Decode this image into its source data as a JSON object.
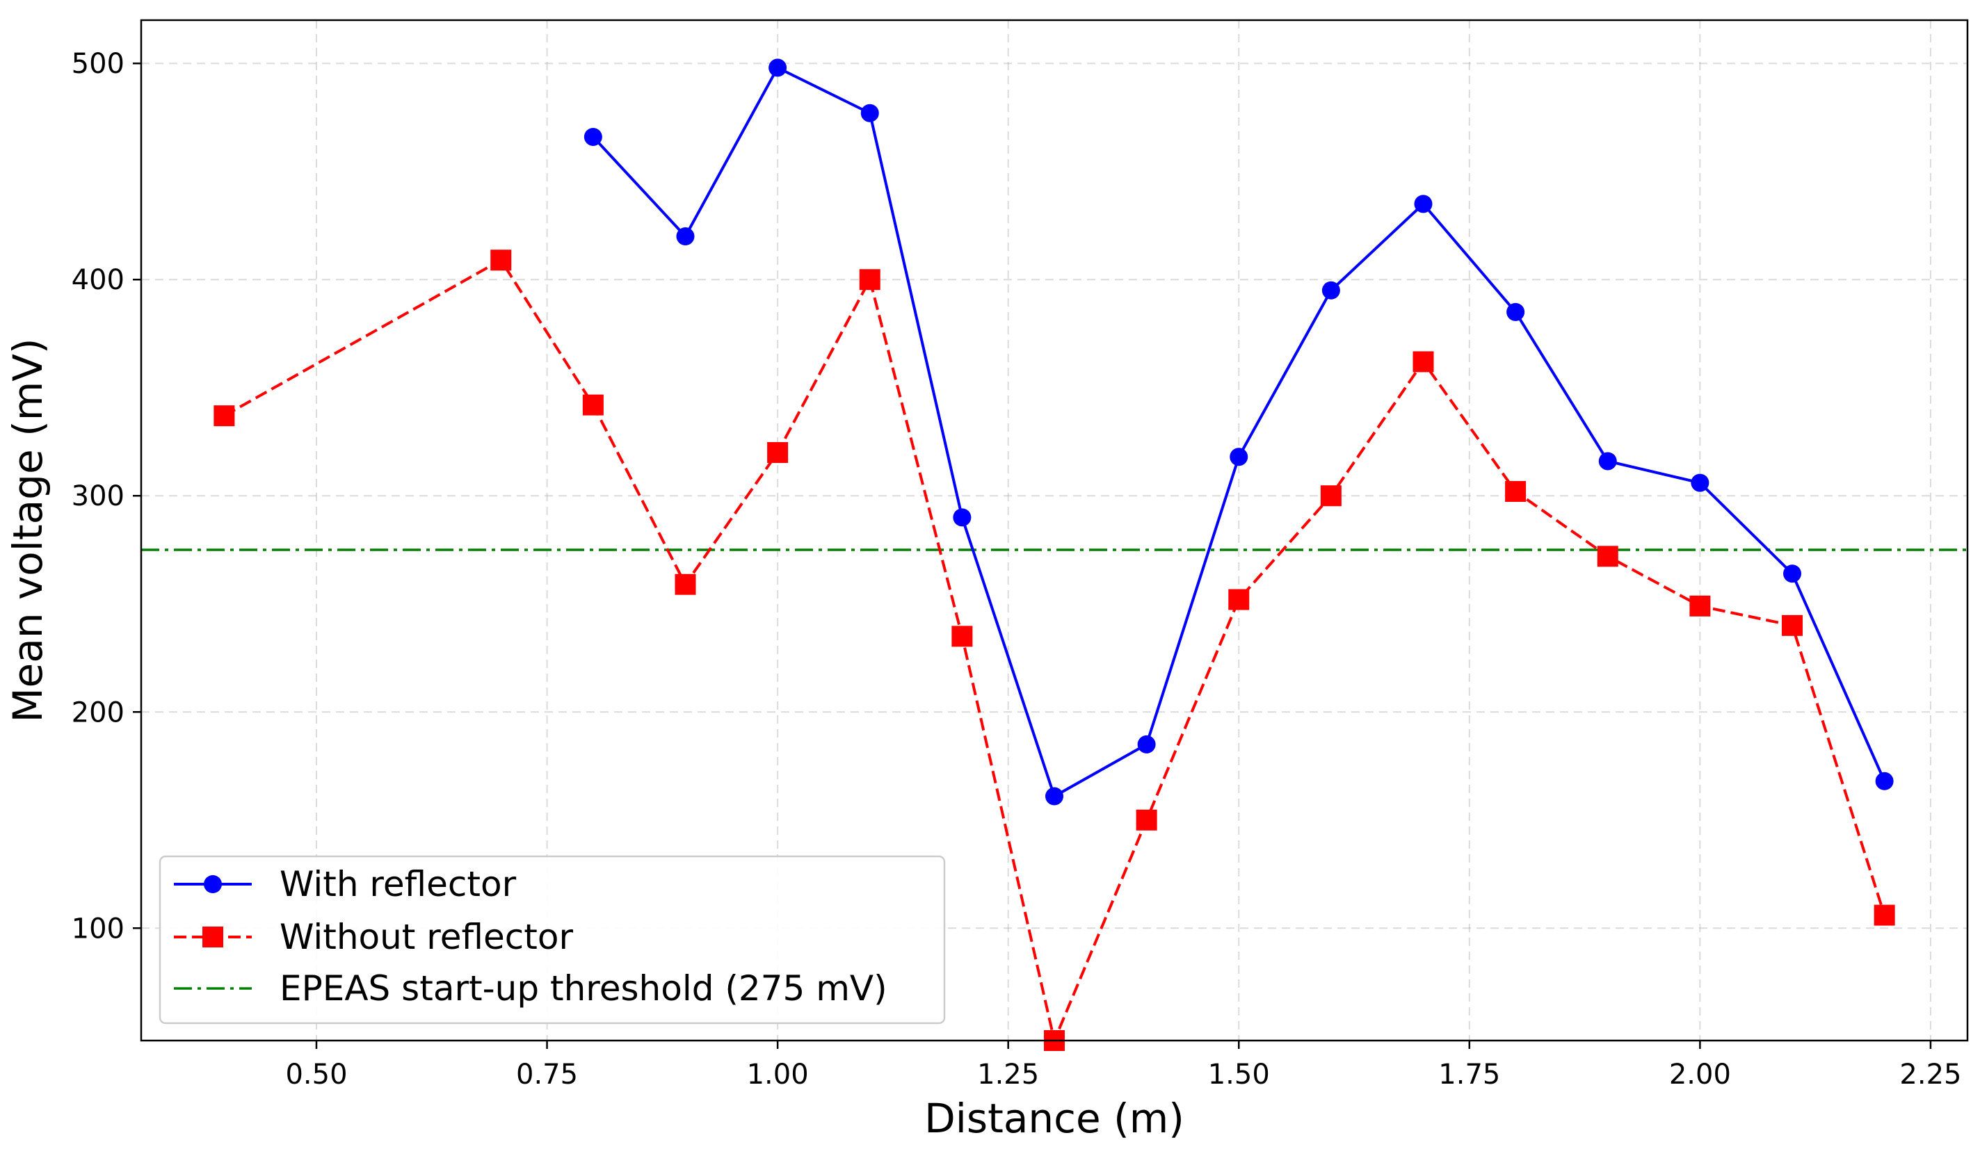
{
  "chart_data": {
    "type": "line",
    "title": "",
    "xlabel": "Distance (m)",
    "ylabel": "Mean voltage (mV)",
    "xlim": [
      0.31,
      2.29
    ],
    "ylim": [
      48,
      520
    ],
    "xticks": [
      0.5,
      0.75,
      1.0,
      1.25,
      1.5,
      1.75,
      2.0,
      2.25
    ],
    "xtick_labels": [
      "0.50",
      "0.75",
      "1.00",
      "1.25",
      "1.50",
      "1.75",
      "2.00",
      "2.25"
    ],
    "yticks": [
      100,
      200,
      300,
      400,
      500
    ],
    "ytick_labels": [
      "100",
      "200",
      "300",
      "400",
      "500"
    ],
    "grid": true,
    "legend_position": "bottom-left",
    "series": [
      {
        "name": "With reflector",
        "color": "#0000ff",
        "line_style": "solid",
        "marker": "circle",
        "x": [
          0.8,
          0.9,
          1.0,
          1.1,
          1.2,
          1.3,
          1.4,
          1.5,
          1.6,
          1.7,
          1.8,
          1.9,
          2.0,
          2.1,
          2.2
        ],
        "values": [
          466,
          420,
          498,
          477,
          290,
          161,
          185,
          318,
          395,
          435,
          385,
          316,
          306,
          264,
          168
        ]
      },
      {
        "name": "Without reflector",
        "color": "#ff0000",
        "line_style": "dashed",
        "marker": "square",
        "x": [
          0.4,
          0.7,
          0.8,
          0.9,
          1.0,
          1.1,
          1.2,
          1.3,
          1.4,
          1.5,
          1.6,
          1.7,
          1.8,
          1.9,
          2.0,
          2.1,
          2.2
        ],
        "values": [
          337,
          409,
          342,
          259,
          320,
          400,
          235,
          48,
          150,
          252,
          300,
          362,
          302,
          272,
          249,
          240,
          106
        ]
      }
    ],
    "reference_lines": [
      {
        "name": "EPEAS start-up threshold (275 mV)",
        "y": 275,
        "color": "#008000",
        "line_style": "dashdot"
      }
    ]
  }
}
